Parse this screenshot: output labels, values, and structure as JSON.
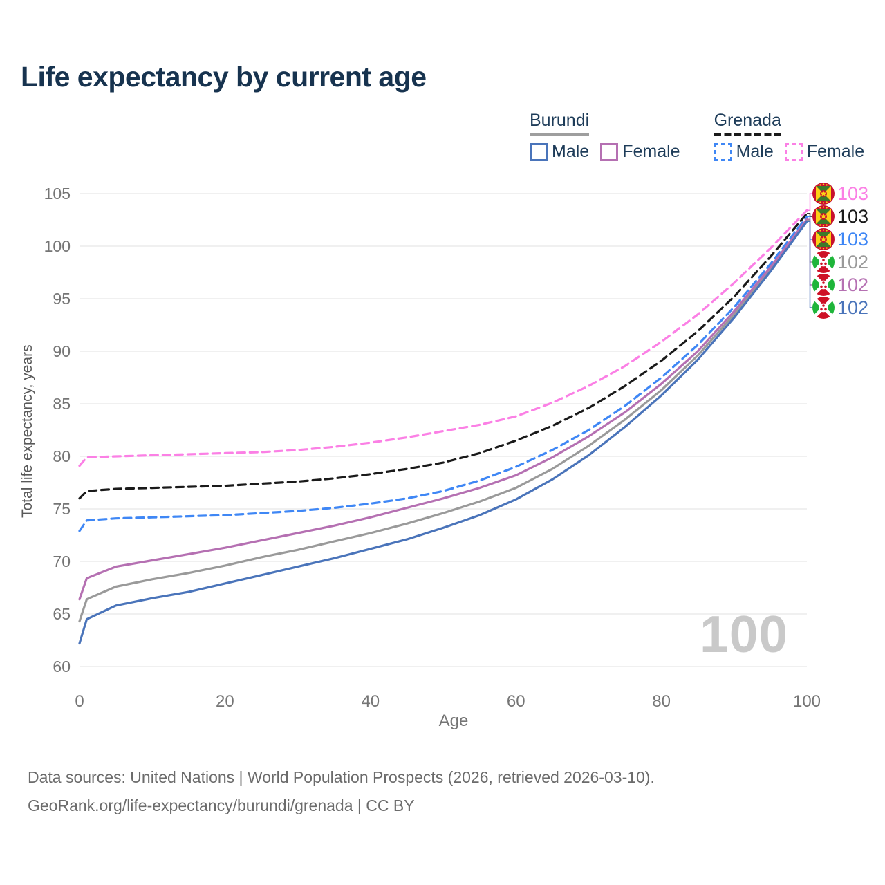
{
  "title": "Life expectancy by current age",
  "watermark": "100",
  "legend": {
    "groups": [
      {
        "country": "Burundi",
        "line_style": "solid",
        "underline_color": "#9e9e9e",
        "items": [
          {
            "label": "Male",
            "color": "#4a74ba",
            "dashed": false
          },
          {
            "label": "Female",
            "color": "#b570b2",
            "dashed": false
          }
        ]
      },
      {
        "country": "Grenada",
        "line_style": "dashed",
        "underline_color": "#1a1a1a",
        "items": [
          {
            "label": "Male",
            "color": "#3f87f5",
            "dashed": true
          },
          {
            "label": "Female",
            "color": "#fb80e5",
            "dashed": true
          }
        ]
      }
    ]
  },
  "chart_data": {
    "type": "line",
    "title": "Life expectancy by current age",
    "xlabel": "Age",
    "ylabel": "Total life expectancy, years",
    "xlim": [
      0,
      100
    ],
    "ylim": [
      60,
      105
    ],
    "x_ticks": [
      0,
      20,
      40,
      60,
      80,
      100
    ],
    "y_ticks": [
      60,
      65,
      70,
      75,
      80,
      85,
      90,
      95,
      100,
      105
    ],
    "grid": "horizontal",
    "gridline_color": "#e7e7e7",
    "axis_text_color": "#757575",
    "x": [
      0,
      1,
      5,
      10,
      15,
      20,
      25,
      30,
      35,
      40,
      45,
      50,
      55,
      60,
      65,
      70,
      75,
      80,
      85,
      90,
      95,
      100
    ],
    "series": [
      {
        "name": "Grenada Female",
        "country": "Grenada",
        "sex": "Female",
        "flag": "grenada",
        "color": "#fb80e5",
        "dashed": true,
        "end_label": "103",
        "values": [
          79.1,
          79.9,
          80.0,
          80.1,
          80.2,
          80.3,
          80.4,
          80.6,
          80.9,
          81.3,
          81.8,
          82.4,
          83.0,
          83.8,
          85.1,
          86.7,
          88.6,
          90.9,
          93.5,
          96.5,
          99.8,
          103.4
        ]
      },
      {
        "name": "Grenada Both sexes",
        "country": "Grenada",
        "sex": "Both",
        "flag": "grenada",
        "color": "#1a1a1a",
        "dashed": true,
        "end_label": "103",
        "values": [
          76.0,
          76.7,
          76.9,
          77.0,
          77.1,
          77.2,
          77.4,
          77.6,
          77.9,
          78.3,
          78.8,
          79.4,
          80.3,
          81.5,
          82.9,
          84.6,
          86.7,
          89.1,
          91.9,
          95.2,
          99.0,
          103.1
        ]
      },
      {
        "name": "Grenada Male",
        "country": "Grenada",
        "sex": "Male",
        "flag": "grenada",
        "color": "#3f87f5",
        "dashed": true,
        "end_label": "103",
        "values": [
          72.9,
          73.9,
          74.1,
          74.2,
          74.3,
          74.4,
          74.6,
          74.8,
          75.1,
          75.5,
          76.0,
          76.7,
          77.7,
          79.0,
          80.6,
          82.5,
          84.8,
          87.5,
          90.6,
          94.2,
          98.3,
          102.8
        ]
      },
      {
        "name": "Burundi Both sexes",
        "country": "Burundi",
        "sex": "Both",
        "flag": "burundi",
        "color": "#9a9a9a",
        "dashed": false,
        "end_label": "102",
        "values": [
          64.3,
          66.4,
          67.6,
          68.3,
          68.9,
          69.6,
          70.4,
          71.1,
          71.9,
          72.7,
          73.6,
          74.6,
          75.7,
          77.0,
          78.8,
          81.0,
          83.5,
          86.3,
          89.6,
          93.5,
          97.8,
          102.45
        ]
      },
      {
        "name": "Burundi Female",
        "country": "Burundi",
        "sex": "Female",
        "flag": "burundi",
        "color": "#b570b2",
        "dashed": false,
        "end_label": "102",
        "values": [
          66.4,
          68.4,
          69.5,
          70.1,
          70.7,
          71.3,
          72.0,
          72.7,
          73.4,
          74.2,
          75.1,
          76.0,
          77.0,
          78.2,
          79.9,
          81.9,
          84.2,
          86.9,
          90.0,
          93.8,
          98.0,
          102.55
        ]
      },
      {
        "name": "Burundi Male",
        "country": "Burundi",
        "sex": "Male",
        "flag": "burundi",
        "color": "#4a74ba",
        "dashed": false,
        "end_label": "102",
        "values": [
          62.2,
          64.5,
          65.8,
          66.5,
          67.1,
          67.9,
          68.7,
          69.5,
          70.3,
          71.2,
          72.1,
          73.2,
          74.4,
          75.9,
          77.8,
          80.1,
          82.8,
          85.8,
          89.2,
          93.2,
          97.6,
          102.35
        ]
      }
    ],
    "legend_position": "top-right"
  },
  "footer": {
    "line1": "Data sources: United Nations | World Population Prospects (2026, retrieved 2026-03-10).",
    "line2": "GeoRank.org/life-expectancy/burundi/grenada | CC BY"
  }
}
